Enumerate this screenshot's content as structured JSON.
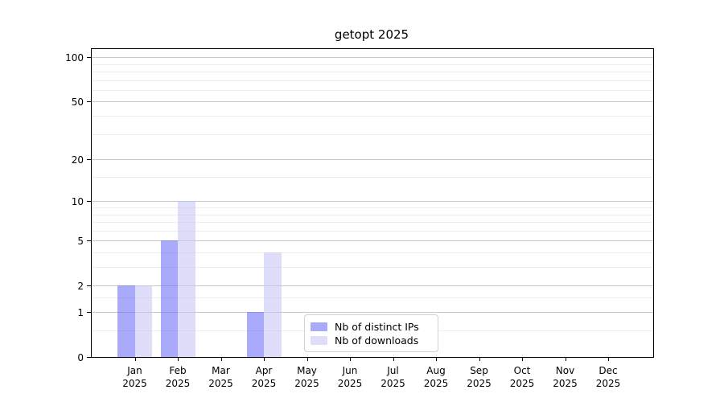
{
  "chart_data": {
    "type": "bar",
    "title": "getopt 2025",
    "categories": [
      "Jan 2025",
      "Feb 2025",
      "Mar 2025",
      "Apr 2025",
      "May 2025",
      "Jun 2025",
      "Jul 2025",
      "Aug 2025",
      "Sep 2025",
      "Oct 2025",
      "Nov 2025",
      "Dec 2025"
    ],
    "series": [
      {
        "name": "Nb of distinct IPs",
        "color": "rgba(100,100,245,0.55)",
        "values": [
          2,
          5,
          0,
          1,
          0,
          0,
          0,
          0,
          0,
          0,
          0,
          0
        ]
      },
      {
        "name": "Nb of downloads",
        "color": "rgba(195,195,245,0.55)",
        "values": [
          2,
          10,
          0,
          4,
          0,
          0,
          0,
          0,
          0,
          0,
          0,
          0
        ]
      }
    ],
    "xlabel": "",
    "ylabel": "",
    "y_scale": "log1p",
    "ylim": [
      0,
      114
    ],
    "y_ticks": [
      0,
      1,
      2,
      5,
      10,
      20,
      50,
      100
    ],
    "y_minor_ticks": [
      0.5,
      1.5,
      3,
      4,
      6,
      7,
      8,
      9,
      15,
      30,
      40,
      60,
      70,
      80,
      90
    ],
    "grid": "horizontal, major and minor, grid visible through semi-transparent bars",
    "legend_position": "lower center inside plot",
    "colors": {
      "spine": "#000000",
      "major_grid": "#c9c9c9",
      "minor_grid": "#ececec",
      "background": "#ffffff"
    }
  }
}
